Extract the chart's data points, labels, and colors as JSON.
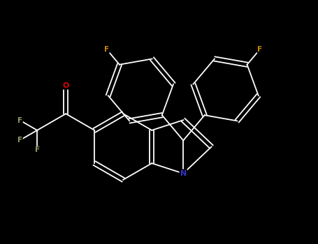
{
  "background_color": "#000000",
  "bond_color": "#ffffff",
  "N_color": "#3333cc",
  "O_color": "#dd0000",
  "F_color_aromatic": "#cc8800",
  "F_color_cf3": "#999966",
  "figsize": [
    4.55,
    3.5
  ],
  "dpi": 100,
  "bond_lw": 1.3,
  "dbo": 0.04,
  "xlim": [
    -2.8,
    2.8
  ],
  "ylim": [
    -2.2,
    2.2
  ]
}
